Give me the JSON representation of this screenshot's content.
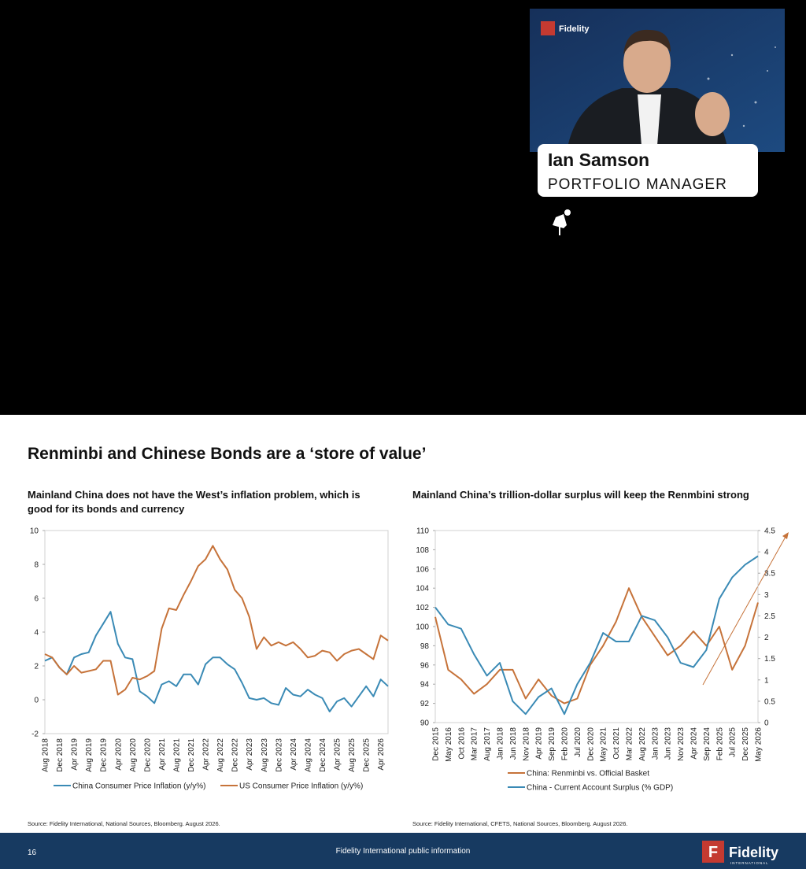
{
  "video": {
    "logo_text": "Fidelity",
    "name": "Ian Samson",
    "role": "PORTFOLIO MANAGER"
  },
  "slide": {
    "title": "Renminbi and Chinese Bonds are a ‘store of value’",
    "page": "16",
    "footer": "Fidelity International public information",
    "brand": "Fidelity",
    "brand_sub": "INTERNATIONAL"
  },
  "chart_data": [
    {
      "type": "line",
      "title": "Mainland China does not have the West’s inflation problem, which is good for its bonds and currency",
      "source": "Source: Fidelity International, National Sources, Bloomberg. August 2026.",
      "categories": [
        "Aug 2018",
        null,
        "Dec 2018",
        null,
        "Apr 2019",
        null,
        "Aug 2019",
        null,
        "Dec 2019",
        null,
        "Apr 2020",
        null,
        "Aug 2020",
        null,
        "Dec 2020",
        null,
        "Apr 2021",
        null,
        "Aug 2021",
        null,
        "Dec 2021",
        null,
        "Apr 2022",
        null,
        "Aug 2022",
        null,
        "Dec 2022",
        null,
        "Apr 2023",
        null,
        "Aug 2023",
        null,
        "Dec 2023",
        null,
        "Apr 2024",
        null,
        "Aug 2024",
        null,
        "Dec 2024",
        null,
        "Apr 2025",
        null,
        "Aug 2025",
        null,
        "Dec 2025",
        null,
        "Apr 2026",
        null
      ],
      "series": [
        {
          "name": "China Consumer Price Inflation (y/y%)",
          "color": "#3a8ab5",
          "values": [
            2.3,
            2.5,
            1.9,
            1.5,
            2.5,
            2.7,
            2.8,
            3.8,
            4.5,
            5.2,
            3.3,
            2.5,
            2.4,
            0.5,
            0.2,
            -0.2,
            0.9,
            1.1,
            0.8,
            1.5,
            1.5,
            0.9,
            2.1,
            2.5,
            2.5,
            2.1,
            1.8,
            1.0,
            0.1,
            0.0,
            0.1,
            -0.2,
            -0.3,
            0.7,
            0.3,
            0.2,
            0.6,
            0.3,
            0.1,
            -0.7,
            -0.1,
            0.1,
            -0.4,
            0.2,
            0.8,
            0.2,
            1.2,
            0.8
          ]
        },
        {
          "name": "US Consumer Price Inflation (y/y%)",
          "color": "#c6733a",
          "values": [
            2.7,
            2.5,
            1.9,
            1.5,
            2.0,
            1.6,
            1.7,
            1.8,
            2.3,
            2.3,
            0.3,
            0.6,
            1.3,
            1.2,
            1.4,
            1.7,
            4.2,
            5.4,
            5.3,
            6.2,
            7.0,
            7.9,
            8.3,
            9.1,
            8.3,
            7.7,
            6.5,
            6.0,
            4.9,
            3.0,
            3.7,
            3.2,
            3.4,
            3.2,
            3.4,
            3.0,
            2.5,
            2.6,
            2.9,
            2.8,
            2.3,
            2.7,
            2.9,
            3.0,
            2.7,
            2.4,
            3.8,
            3.5
          ]
        }
      ],
      "ylim": [
        -2,
        10
      ],
      "yticks": [
        -2,
        0,
        2,
        4,
        6,
        8,
        10
      ],
      "grid": false
    },
    {
      "type": "line",
      "title": "Mainland China’s trillion-dollar surplus will keep the Renmbini strong",
      "source": "Source: Fidelity International, CFETS, National Sources, Bloomberg. August 2026.",
      "categories": [
        "Dec 2015",
        "May 2016",
        "Oct 2016",
        "Mar 2017",
        "Aug 2017",
        "Jan 2018",
        "Jun 2018",
        "Nov 2018",
        "Apr 2019",
        "Sep 2019",
        "Feb 2020",
        "Jul 2020",
        "Dec 2020",
        "May 2021",
        "Oct 2021",
        "Mar 2022",
        "Aug 2022",
        "Jan 2023",
        "Jun 2023",
        "Nov 2023",
        "Apr 2024",
        "Sep 2024",
        "Feb 2025",
        "Jul 2025",
        "Dec 2025",
        "May 2026"
      ],
      "series": [
        {
          "name": "China: Renminbi vs. Official Basket",
          "color": "#c6733a",
          "values": [
            101,
            95.5,
            94.5,
            93,
            94,
            95.5,
            95.5,
            92.5,
            94.5,
            92.8,
            92,
            92.5,
            96,
            98,
            100.5,
            104,
            101,
            99,
            97,
            98,
            99.5,
            98,
            100,
            95.5,
            98,
            102.5
          ]
        },
        {
          "name": "China - Current Account Surplus (% GDP)",
          "color": "#3a8ab5",
          "axis": "y2",
          "values": [
            2.7,
            2.3,
            2.2,
            1.6,
            1.1,
            1.4,
            0.5,
            0.2,
            0.6,
            0.8,
            0.2,
            0.9,
            1.4,
            2.1,
            1.9,
            1.9,
            2.5,
            2.4,
            2.0,
            1.4,
            1.3,
            1.7,
            2.9,
            3.4,
            3.7,
            3.9
          ]
        }
      ],
      "ylim": [
        90,
        110
      ],
      "yticks": [
        90,
        92,
        94,
        96,
        98,
        100,
        102,
        104,
        106,
        108,
        110
      ],
      "y2lim": [
        0,
        4.5
      ],
      "y2ticks": [
        0,
        0.5,
        1,
        1.5,
        2,
        2.5,
        3,
        3.5,
        4,
        4.5
      ],
      "grid": false
    }
  ]
}
